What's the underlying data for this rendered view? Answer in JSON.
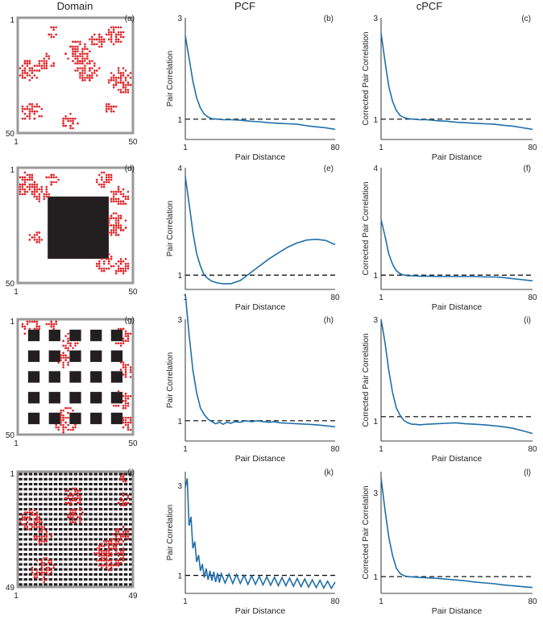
{
  "headers": [
    "Domain",
    "PCF",
    "cPCF"
  ],
  "colors": {
    "curve": "#1f6fa8",
    "agents": "#e0262a",
    "obstacle": "#231f20",
    "frame": "#999999",
    "dashed": "#000000"
  },
  "rows": [
    {
      "domain": {
        "label": "(a)",
        "tick_min": "1",
        "tick_max": "50",
        "obstacle": "none",
        "clusters": [
          [
            0.12,
            0.82,
            0.09
          ],
          [
            0.1,
            0.45,
            0.09
          ],
          [
            0.25,
            0.38,
            0.07
          ],
          [
            0.3,
            0.12,
            0.05
          ],
          [
            0.52,
            0.3,
            0.1
          ],
          [
            0.6,
            0.45,
            0.1
          ],
          [
            0.7,
            0.2,
            0.07
          ],
          [
            0.85,
            0.15,
            0.08
          ],
          [
            0.9,
            0.55,
            0.11
          ],
          [
            0.45,
            0.9,
            0.07
          ],
          [
            0.8,
            0.78,
            0.05
          ]
        ]
      },
      "pcf": {
        "label": "(b)",
        "ylabel": "Pair Correlation",
        "xlabel": "Pair Distance",
        "x_min": "1",
        "x_max": "80",
        "y_tick_low": "1",
        "y_tick_high": "3",
        "ylim": [
          0.6,
          3
        ]
      },
      "cpcf": {
        "label": "(c)",
        "ylabel": "Corrected Pair Correlation",
        "xlabel": "Pair Distance",
        "x_min": "1",
        "x_max": "80",
        "y_tick_low": "1",
        "y_tick_high": "3",
        "ylim": [
          0.6,
          3
        ]
      }
    },
    {
      "domain": {
        "label": "(d)",
        "tick_min": "1",
        "tick_max": "50",
        "obstacle": "center",
        "clusters": [
          [
            0.08,
            0.15,
            0.1
          ],
          [
            0.2,
            0.22,
            0.07
          ],
          [
            0.15,
            0.6,
            0.06
          ],
          [
            0.75,
            0.1,
            0.07
          ],
          [
            0.88,
            0.25,
            0.08
          ],
          [
            0.85,
            0.5,
            0.1
          ],
          [
            0.75,
            0.82,
            0.08
          ],
          [
            0.9,
            0.85,
            0.07
          ],
          [
            0.3,
            0.1,
            0.05
          ]
        ]
      },
      "pcf": {
        "label": "(e)",
        "ylabel": "Pair Correlation",
        "xlabel": "Pair Distance",
        "x_min": "1",
        "x_max": "80",
        "y_tick_low": "1",
        "y_tick_high": "4",
        "ylim": [
          0.6,
          4
        ]
      },
      "cpcf": {
        "label": "(f)",
        "ylabel": "Corrected Pair Correlation",
        "xlabel": "Pair Distance",
        "x_min": "1",
        "x_max": "80",
        "y_tick_low": "1",
        "y_tick_high": "4",
        "ylim": [
          0.6,
          4
        ]
      }
    },
    {
      "domain": {
        "label": "(g)",
        "tick_min": "1",
        "tick_max": "50",
        "obstacle": "grid5",
        "clusters": [
          [
            0.12,
            0.08,
            0.08
          ],
          [
            0.45,
            0.2,
            0.07
          ],
          [
            0.4,
            0.35,
            0.06
          ],
          [
            0.9,
            0.15,
            0.08
          ],
          [
            0.92,
            0.45,
            0.08
          ],
          [
            0.9,
            0.7,
            0.08
          ],
          [
            0.42,
            0.88,
            0.11
          ],
          [
            0.95,
            0.9,
            0.06
          ],
          [
            0.3,
            0.05,
            0.05
          ]
        ]
      },
      "pcf": {
        "label": "(h)",
        "ylabel": "Pair Correlation",
        "xlabel": "Pair Distance",
        "x_min": "1",
        "x_max": "80",
        "y_tick_low": "1",
        "y_tick_high": "3",
        "ylim": [
          0.6,
          3
        ]
      },
      "cpcf": {
        "label": "(i)",
        "ylabel": "Corrected Pair Correlation",
        "xlabel": "Pair Distance",
        "x_min": "1",
        "x_max": "80",
        "y_tick_low": "1",
        "y_tick_high": "3",
        "ylim": [
          0.6,
          3
        ]
      }
    },
    {
      "domain": {
        "label": "(j)",
        "tick_min": "1",
        "tick_max": "49",
        "obstacle": "dense",
        "clusters": [
          [
            0.12,
            0.42,
            0.1
          ],
          [
            0.22,
            0.55,
            0.08
          ],
          [
            0.48,
            0.22,
            0.08
          ],
          [
            0.5,
            0.38,
            0.07
          ],
          [
            0.22,
            0.85,
            0.1
          ],
          [
            0.8,
            0.72,
            0.13
          ],
          [
            0.9,
            0.55,
            0.08
          ],
          [
            0.92,
            0.25,
            0.06
          ],
          [
            0.92,
            0.05,
            0.04
          ]
        ]
      },
      "pcf": {
        "label": "(k)",
        "ylabel": "Pair Correlation",
        "xlabel": "Pair Distance",
        "x_min": "1",
        "x_max": "80",
        "y_tick_low": "1",
        "y_tick_high": "3",
        "ylim": [
          0.6,
          3.3
        ]
      },
      "cpcf": {
        "label": "(l)",
        "ylabel": "Corrected Pair Correlation",
        "xlabel": "Pair Distance",
        "x_min": "1",
        "x_max": "80",
        "y_tick_low": "1",
        "y_tick_high": "3",
        "ylim": [
          0.6,
          3.5
        ]
      }
    }
  ],
  "chart_data": [
    {
      "panel": "(b)",
      "type": "line",
      "xlim": [
        1,
        80
      ],
      "reference_line": 1,
      "x": [
        1,
        3,
        5,
        7,
        9,
        11,
        13,
        15,
        18,
        21,
        25,
        30,
        35,
        40,
        45,
        50,
        55,
        60,
        65,
        70,
        75,
        80
      ],
      "y": [
        2.65,
        2.2,
        1.75,
        1.42,
        1.22,
        1.1,
        1.04,
        1.01,
        1.0,
        0.99,
        0.99,
        0.98,
        0.96,
        0.95,
        0.93,
        0.92,
        0.91,
        0.9,
        0.87,
        0.85,
        0.83,
        0.8
      ]
    },
    {
      "panel": "(c)",
      "type": "line",
      "xlim": [
        1,
        80
      ],
      "reference_line": 1,
      "x": [
        1,
        3,
        5,
        7,
        9,
        11,
        13,
        15,
        18,
        21,
        25,
        30,
        35,
        40,
        45,
        50,
        55,
        60,
        65,
        70,
        75,
        80
      ],
      "y": [
        2.7,
        2.15,
        1.65,
        1.35,
        1.17,
        1.07,
        1.03,
        1.01,
        1.0,
        0.99,
        0.99,
        0.97,
        0.96,
        0.94,
        0.93,
        0.92,
        0.91,
        0.9,
        0.88,
        0.86,
        0.83,
        0.8
      ]
    },
    {
      "panel": "(e)",
      "type": "line",
      "xlim": [
        1,
        80
      ],
      "reference_line": 1,
      "x": [
        1,
        3,
        5,
        7,
        9,
        11,
        13,
        15,
        18,
        21,
        25,
        30,
        35,
        40,
        45,
        50,
        55,
        60,
        65,
        70,
        75,
        80
      ],
      "y": [
        3.75,
        3.0,
        2.2,
        1.6,
        1.25,
        1.0,
        0.9,
        0.83,
        0.78,
        0.76,
        0.76,
        0.85,
        1.05,
        1.25,
        1.45,
        1.62,
        1.78,
        1.9,
        1.98,
        2.0,
        1.97,
        1.85
      ]
    },
    {
      "panel": "(f)",
      "type": "line",
      "xlim": [
        1,
        80
      ],
      "reference_line": 1,
      "x": [
        1,
        3,
        5,
        7,
        9,
        11,
        13,
        15,
        18,
        21,
        25,
        30,
        35,
        40,
        45,
        50,
        55,
        60,
        65,
        70,
        75,
        80
      ],
      "y": [
        2.55,
        2.1,
        1.6,
        1.3,
        1.12,
        1.04,
        1.0,
        0.98,
        0.98,
        0.97,
        0.97,
        0.96,
        0.96,
        0.96,
        0.96,
        0.96,
        0.95,
        0.95,
        0.93,
        0.9,
        0.87,
        0.84
      ]
    },
    {
      "panel": "(h)",
      "type": "line",
      "xlim": [
        1,
        80
      ],
      "reference_line": 1,
      "x": [
        1,
        3,
        5,
        7,
        9,
        11,
        13,
        15,
        17,
        19,
        21,
        23,
        25,
        27,
        30,
        33,
        36,
        39,
        42,
        45,
        48,
        51,
        55,
        60,
        65,
        70,
        75,
        80
      ],
      "y": [
        3.5,
        2.7,
        2.0,
        1.55,
        1.25,
        1.12,
        1.03,
        0.98,
        0.94,
        0.97,
        0.93,
        0.97,
        0.95,
        0.98,
        0.97,
        1.0,
        0.98,
        1.0,
        0.98,
        0.97,
        0.98,
        0.96,
        0.95,
        0.94,
        0.93,
        0.92,
        0.9,
        0.88
      ]
    },
    {
      "panel": "(i)",
      "type": "line",
      "xlim": [
        1,
        80
      ],
      "reference_line": 1.08,
      "x": [
        1,
        3,
        5,
        7,
        9,
        11,
        13,
        15,
        17,
        19,
        21,
        25,
        30,
        35,
        40,
        45,
        50,
        55,
        60,
        65,
        70,
        75,
        80
      ],
      "y": [
        3.0,
        2.55,
        2.0,
        1.55,
        1.25,
        1.1,
        1.0,
        0.96,
        0.93,
        0.93,
        0.92,
        0.93,
        0.94,
        0.95,
        0.96,
        0.94,
        0.93,
        0.92,
        0.9,
        0.88,
        0.85,
        0.8,
        0.75
      ]
    },
    {
      "panel": "(k)",
      "type": "line",
      "xlim": [
        1,
        80
      ],
      "reference_line": 1,
      "x": [
        1,
        2,
        3,
        4,
        5,
        6,
        7,
        8,
        9,
        10,
        11,
        12,
        13,
        14,
        15,
        16,
        17,
        18,
        19,
        20,
        22,
        24,
        26,
        28,
        30,
        32,
        34,
        36,
        38,
        40,
        42,
        44,
        46,
        48,
        50,
        52,
        54,
        56,
        58,
        60,
        62,
        64,
        66,
        68,
        70,
        72,
        74,
        76,
        78,
        80
      ],
      "y": [
        2.95,
        3.15,
        2.1,
        2.3,
        1.6,
        1.75,
        1.3,
        1.45,
        1.1,
        1.25,
        0.95,
        1.15,
        0.9,
        1.1,
        0.88,
        1.08,
        0.85,
        1.05,
        0.84,
        1.04,
        0.83,
        1.03,
        0.82,
        1.02,
        0.82,
        1.0,
        0.8,
        0.99,
        0.8,
        0.98,
        0.79,
        0.97,
        0.78,
        0.96,
        0.77,
        0.95,
        0.77,
        0.94,
        0.76,
        0.93,
        0.75,
        0.92,
        0.74,
        0.9,
        0.73,
        0.89,
        0.72,
        0.87,
        0.71,
        0.85
      ]
    },
    {
      "panel": "(l)",
      "type": "line",
      "xlim": [
        1,
        80
      ],
      "reference_line": 1,
      "x": [
        1,
        3,
        5,
        7,
        9,
        11,
        13,
        15,
        18,
        21,
        25,
        30,
        35,
        40,
        45,
        50,
        55,
        60,
        65,
        70,
        75,
        80
      ],
      "y": [
        3.35,
        2.6,
        1.95,
        1.5,
        1.2,
        1.07,
        1.02,
        1.0,
        0.99,
        0.98,
        0.97,
        0.96,
        0.94,
        0.92,
        0.9,
        0.87,
        0.85,
        0.83,
        0.8,
        0.78,
        0.76,
        0.74
      ]
    }
  ]
}
